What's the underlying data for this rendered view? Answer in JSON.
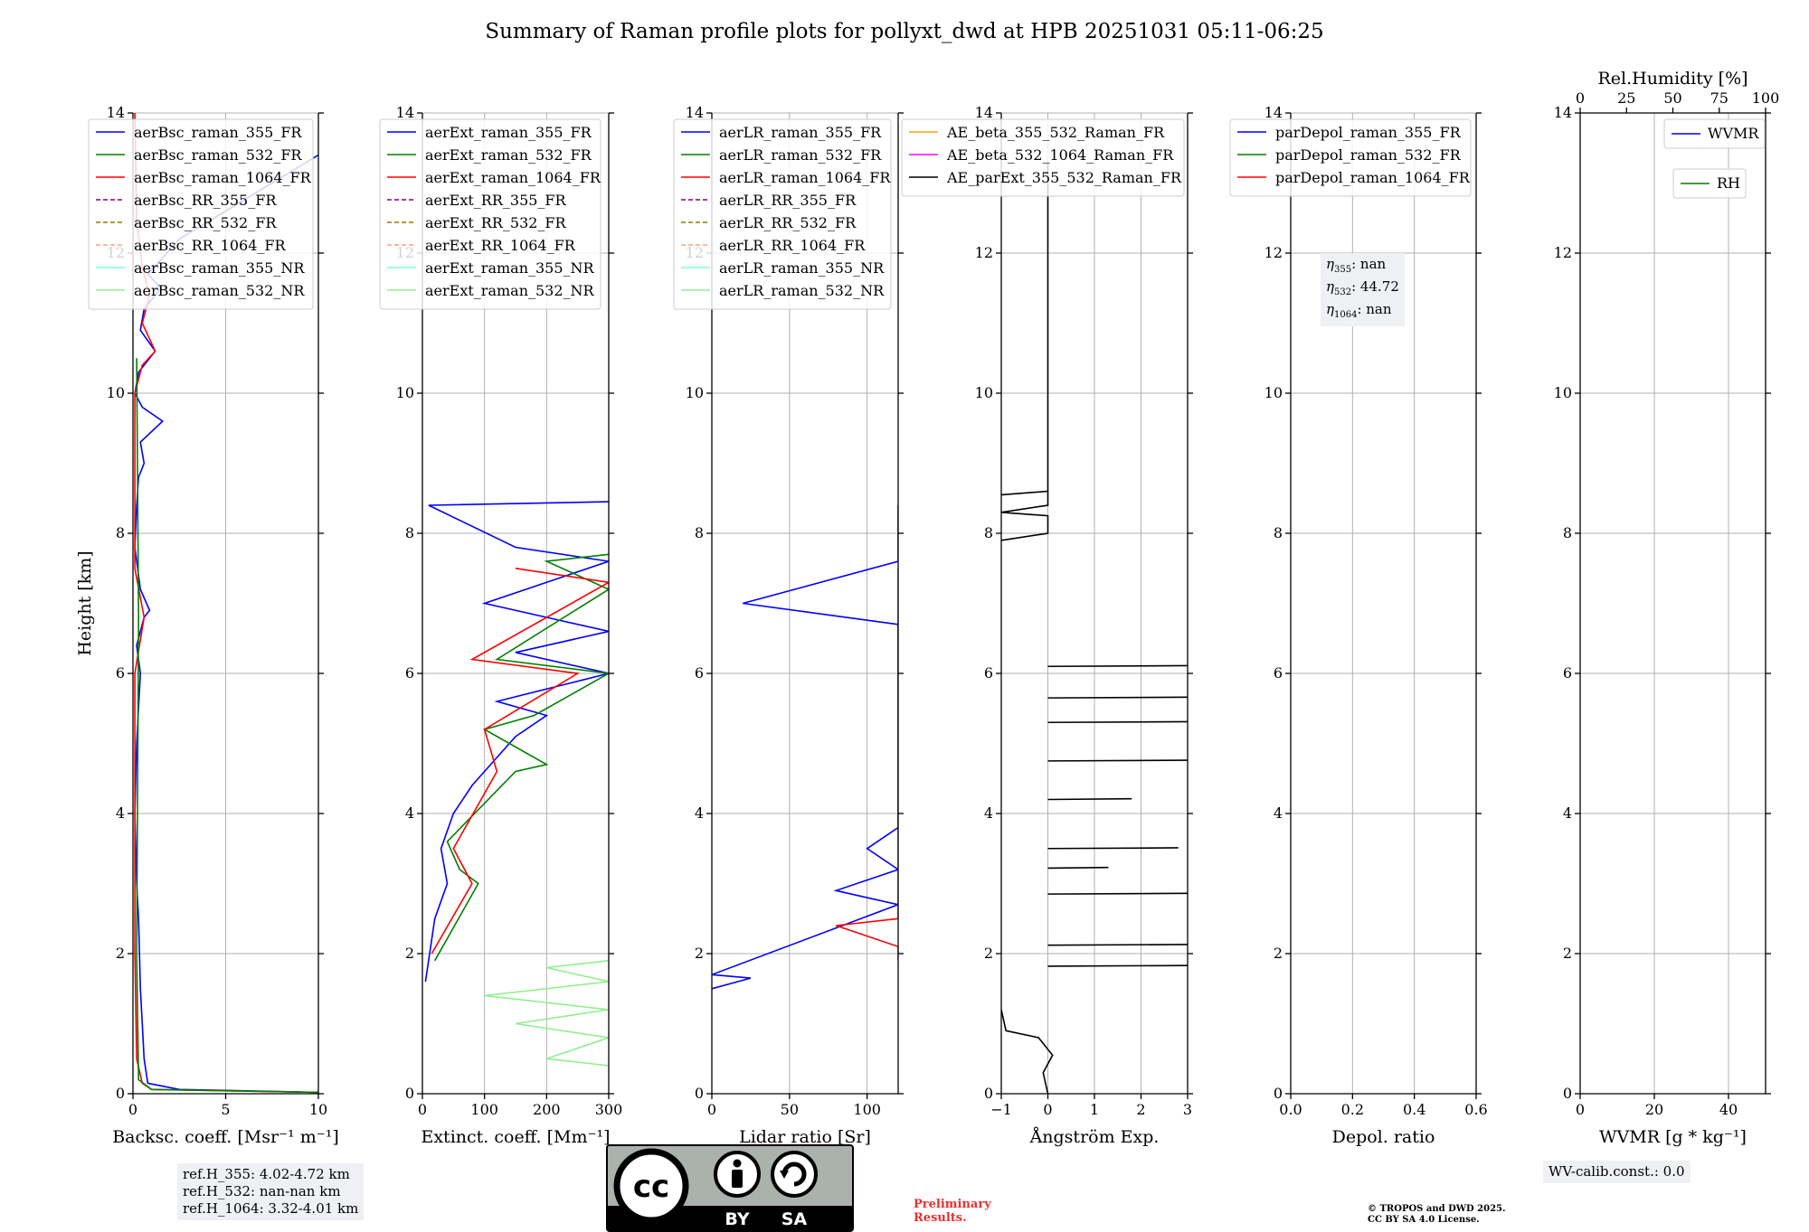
{
  "title": "Summary of Raman profile plots for pollyxt_dwd at HPB 20251031 05:11-06:25",
  "chart_data": [
    {
      "type": "line",
      "id": "bsc",
      "xlabel": "Backsc. coeff. [Msr⁻¹ m⁻¹]",
      "ylabel": "Height [km]",
      "xlim": [
        0,
        10
      ],
      "ylim": [
        0,
        14
      ],
      "xticks": [
        0,
        5,
        10
      ],
      "yticks": [
        0,
        2,
        4,
        6,
        8,
        10,
        12,
        14
      ],
      "legend": [
        {
          "name": "aerBsc_raman_355_FR",
          "color": "#0000ff",
          "dash": false
        },
        {
          "name": "aerBsc_raman_532_FR",
          "color": "#008000",
          "dash": false
        },
        {
          "name": "aerBsc_raman_1064_FR",
          "color": "#ff0000",
          "dash": false
        },
        {
          "name": "aerBsc_RR_355_FR",
          "color": "#800080",
          "dash": true
        },
        {
          "name": "aerBsc_RR_532_FR",
          "color": "#808000",
          "dash": true
        },
        {
          "name": "aerBsc_RR_1064_FR",
          "color": "#ffa07a",
          "dash": true
        },
        {
          "name": "aerBsc_raman_355_NR",
          "color": "#7fffd4",
          "dash": false
        },
        {
          "name": "aerBsc_raman_532_NR",
          "color": "#90ee90",
          "dash": false
        }
      ],
      "series": [
        {
          "name": "aerBsc_raman_355_FR",
          "color": "#0000ff",
          "points": [
            [
              10,
              0.02
            ],
            [
              2.5,
              0.06
            ],
            [
              0.8,
              0.15
            ],
            [
              0.6,
              0.5
            ],
            [
              0.5,
              1
            ],
            [
              0.4,
              1.5
            ],
            [
              0.3,
              2.5
            ],
            [
              0.2,
              3
            ],
            [
              0.1,
              4
            ],
            [
              0.2,
              5
            ],
            [
              0.4,
              6
            ],
            [
              0.2,
              6.4
            ],
            [
              0.6,
              6.8
            ],
            [
              0.9,
              6.9
            ],
            [
              0.4,
              7.2
            ],
            [
              0.1,
              7.8
            ],
            [
              0.2,
              8.4
            ],
            [
              0.3,
              8.8
            ],
            [
              0.6,
              9
            ],
            [
              0.4,
              9.3
            ],
            [
              1.6,
              9.6
            ],
            [
              0.5,
              9.8
            ],
            [
              0.1,
              10
            ],
            [
              0.3,
              10.3
            ],
            [
              1.2,
              10.6
            ],
            [
              0.4,
              10.9
            ],
            [
              0.6,
              11.2
            ],
            [
              1.5,
              11.5
            ],
            [
              0.8,
              11.7
            ],
            [
              2.5,
              12.2
            ],
            [
              10,
              13.4
            ]
          ]
        },
        {
          "name": "aerBsc_raman_1064_FR",
          "color": "#ff0000",
          "points": [
            [
              10,
              0.02
            ],
            [
              1,
              0.06
            ],
            [
              0.5,
              0.15
            ],
            [
              0.2,
              0.5
            ],
            [
              0.1,
              2
            ],
            [
              0.1,
              6
            ],
            [
              0.6,
              6.8
            ],
            [
              0.1,
              7.5
            ],
            [
              0.1,
              10
            ],
            [
              0.5,
              10.4
            ],
            [
              1.2,
              10.6
            ],
            [
              0.5,
              11
            ],
            [
              0.9,
              11.4
            ],
            [
              0.5,
              11.8
            ],
            [
              0.2,
              12.5
            ],
            [
              0.1,
              14
            ]
          ]
        },
        {
          "name": "aerBsc_raman_532_FR",
          "color": "#008000",
          "points": [
            [
              10,
              0.02
            ],
            [
              1,
              0.06
            ],
            [
              0.3,
              0.2
            ],
            [
              0.2,
              2
            ],
            [
              0.3,
              6.8
            ],
            [
              0.2,
              10.5
            ]
          ]
        }
      ]
    },
    {
      "type": "line",
      "id": "ext",
      "xlabel": "Extinct. coeff. [Mm⁻¹]",
      "xlim": [
        0,
        300
      ],
      "ylim": [
        0,
        14
      ],
      "xticks": [
        0,
        100,
        200,
        300
      ],
      "yticks": [
        0,
        2,
        4,
        6,
        8,
        10,
        12,
        14
      ],
      "legend": [
        {
          "name": "aerExt_raman_355_FR",
          "color": "#0000ff",
          "dash": false
        },
        {
          "name": "aerExt_raman_532_FR",
          "color": "#008000",
          "dash": false
        },
        {
          "name": "aerExt_raman_1064_FR",
          "color": "#ff0000",
          "dash": false
        },
        {
          "name": "aerExt_RR_355_FR",
          "color": "#800080",
          "dash": true
        },
        {
          "name": "aerExt_RR_532_FR",
          "color": "#808000",
          "dash": true
        },
        {
          "name": "aerExt_RR_1064_FR",
          "color": "#ffa07a",
          "dash": true
        },
        {
          "name": "aerExt_raman_355_NR",
          "color": "#7fffd4",
          "dash": false
        },
        {
          "name": "aerExt_raman_532_NR",
          "color": "#90ee90",
          "dash": false
        }
      ],
      "series": [
        {
          "name": "aerExt_raman_355_FR",
          "color": "#0000ff",
          "points": [
            [
              5,
              1.6
            ],
            [
              15,
              2.2
            ],
            [
              20,
              2.5
            ],
            [
              40,
              3
            ],
            [
              30,
              3.5
            ],
            [
              50,
              4
            ],
            [
              80,
              4.4
            ],
            [
              120,
              4.8
            ],
            [
              150,
              5.1
            ],
            [
              200,
              5.4
            ],
            [
              120,
              5.6
            ],
            [
              300,
              6
            ],
            [
              150,
              6.3
            ],
            [
              300,
              6.6
            ],
            [
              100,
              7
            ],
            [
              300,
              7.6
            ],
            [
              150,
              7.8
            ],
            [
              10,
              8.4
            ],
            [
              300,
              8.45
            ]
          ]
        },
        {
          "name": "aerExt_raman_532_FR",
          "color": "#008000",
          "points": [
            [
              20,
              1.9
            ],
            [
              90,
              3
            ],
            [
              60,
              3.2
            ],
            [
              40,
              3.6
            ],
            [
              150,
              4.6
            ],
            [
              200,
              4.7
            ],
            [
              100,
              5.2
            ],
            [
              180,
              5.4
            ],
            [
              300,
              6
            ],
            [
              120,
              6.2
            ],
            [
              300,
              7.2
            ],
            [
              200,
              7.6
            ],
            [
              300,
              7.7
            ]
          ]
        },
        {
          "name": "aerExt_raman_1064_FR",
          "color": "#ff0000",
          "points": [
            [
              15,
              2
            ],
            [
              80,
              3
            ],
            [
              50,
              3.5
            ],
            [
              120,
              4.6
            ],
            [
              100,
              5.2
            ],
            [
              250,
              6
            ],
            [
              80,
              6.2
            ],
            [
              300,
              7.3
            ],
            [
              150,
              7.5
            ]
          ]
        },
        {
          "name": "aerExt_raman_532_NR",
          "color": "#90ee90",
          "points": [
            [
              300,
              0.4
            ],
            [
              200,
              0.5
            ],
            [
              300,
              0.8
            ],
            [
              150,
              1.0
            ],
            [
              300,
              1.2
            ],
            [
              100,
              1.4
            ],
            [
              300,
              1.6
            ],
            [
              200,
              1.8
            ],
            [
              300,
              1.9
            ]
          ]
        }
      ]
    },
    {
      "type": "line",
      "id": "lr",
      "xlabel": "Lidar ratio [Sr]",
      "xlim": [
        0,
        120
      ],
      "ylim": [
        0,
        14
      ],
      "xticks": [
        0,
        50,
        100
      ],
      "yticks": [
        0,
        2,
        4,
        6,
        8,
        10,
        12,
        14
      ],
      "legend": [
        {
          "name": "aerLR_raman_355_FR",
          "color": "#0000ff",
          "dash": false
        },
        {
          "name": "aerLR_raman_532_FR",
          "color": "#008000",
          "dash": false
        },
        {
          "name": "aerLR_raman_1064_FR",
          "color": "#ff0000",
          "dash": false
        },
        {
          "name": "aerLR_RR_355_FR",
          "color": "#800080",
          "dash": true
        },
        {
          "name": "aerLR_RR_532_FR",
          "color": "#808000",
          "dash": true
        },
        {
          "name": "aerLR_RR_1064_FR",
          "color": "#ffa07a",
          "dash": true
        },
        {
          "name": "aerLR_raman_355_NR",
          "color": "#7fffd4",
          "dash": false
        },
        {
          "name": "aerLR_raman_532_NR",
          "color": "#90ee90",
          "dash": false
        }
      ],
      "series": [
        {
          "name": "aerLR_raman_355_FR",
          "color": "#0000ff",
          "points": [
            [
              0,
              1.5
            ],
            [
              25,
              1.65
            ],
            [
              0,
              1.7
            ],
            [
              120,
              2.7
            ],
            [
              80,
              2.9
            ],
            [
              120,
              3.2
            ],
            [
              100,
              3.5
            ],
            [
              120,
              3.8
            ],
            [
              120,
              4.8
            ],
            [
              120,
              5.2
            ],
            [
              120,
              6.0
            ],
            [
              120,
              6.3
            ],
            [
              120,
              6.7
            ],
            [
              20,
              7.0
            ],
            [
              120,
              7.6
            ],
            [
              120,
              7.8
            ],
            [
              120,
              8.4
            ]
          ]
        },
        {
          "name": "aerLR_raman_1064_FR",
          "color": "#ff0000",
          "points": [
            [
              120,
              1.9
            ],
            [
              120,
              2.1
            ],
            [
              80,
              2.4
            ],
            [
              120,
              2.5
            ],
            [
              120,
              3.0
            ],
            [
              120,
              3.6
            ],
            [
              120,
              4.1
            ],
            [
              120,
              4.5
            ],
            [
              120,
              5.0
            ],
            [
              120,
              5.5
            ],
            [
              120,
              5.8
            ],
            [
              120,
              6.4
            ],
            [
              120,
              6.6
            ],
            [
              120,
              7.2
            ],
            [
              120,
              7.5
            ]
          ]
        }
      ]
    },
    {
      "type": "line",
      "id": "ae",
      "xlabel": "Ångström Exp.",
      "xlim": [
        -1,
        3
      ],
      "ylim": [
        0,
        14
      ],
      "xticks": [
        -1,
        0,
        1,
        2,
        3
      ],
      "yticks": [
        0,
        2,
        4,
        6,
        8,
        10,
        12,
        14
      ],
      "legend": [
        {
          "name": "AE_beta_355_532_Raman_FR",
          "color": "#ffa500",
          "dash": false
        },
        {
          "name": "AE_beta_532_1064_Raman_FR",
          "color": "#ff00ff",
          "dash": false
        },
        {
          "name": "AE_parExt_355_532_Raman_FR",
          "color": "#000000",
          "dash": false
        }
      ],
      "series": [
        {
          "name": "AE_parExt_355_532_Raman_FR",
          "color": "#000000",
          "points": [
            [
              0,
              0
            ],
            [
              -0.1,
              0.3
            ],
            [
              0.1,
              0.55
            ],
            [
              -0.2,
              0.8
            ],
            [
              -0.9,
              0.9
            ],
            [
              -1,
              1.2
            ]
          ]
        },
        {
          "name": "AE_parExt_355_532_Raman_FR_upper",
          "color": "#000000",
          "points": [
            [
              -1,
              7.9
            ],
            [
              0,
              8.0
            ],
            [
              0,
              8.25
            ],
            [
              -1,
              8.3
            ],
            [
              0,
              8.4
            ],
            [
              0,
              8.6
            ],
            [
              -1,
              8.55
            ]
          ]
        },
        {
          "name": "AE_parExt_355_532_Raman_FR_top",
          "color": "#000000",
          "points": [
            [
              0,
              8.6
            ],
            [
              0,
              13.3
            ]
          ]
        }
      ],
      "spikes": [
        [
          1.82,
          3
        ],
        [
          2.12,
          3
        ],
        [
          2.85,
          3
        ],
        [
          3.22,
          1.3
        ],
        [
          3.5,
          2.8
        ],
        [
          4.2,
          1.8
        ],
        [
          4.75,
          3
        ],
        [
          5.3,
          3
        ],
        [
          5.65,
          3
        ],
        [
          6.1,
          3
        ]
      ]
    },
    {
      "type": "line",
      "id": "depol",
      "xlabel": "Depol. ratio",
      "xlim": [
        0,
        0.6
      ],
      "ylim": [
        0,
        14
      ],
      "xticks": [
        0.0,
        0.2,
        0.4,
        0.6
      ],
      "xtick_labels": [
        "0.0",
        "0.2",
        "0.4",
        "0.6"
      ],
      "yticks": [
        0,
        2,
        4,
        6,
        8,
        10,
        12,
        14
      ],
      "legend": [
        {
          "name": "parDepol_raman_355_FR",
          "color": "#0000ff",
          "dash": false
        },
        {
          "name": "parDepol_raman_532_FR",
          "color": "#008000",
          "dash": false
        },
        {
          "name": "parDepol_raman_1064_FR",
          "color": "#ff0000",
          "dash": false
        }
      ],
      "series": []
    },
    {
      "type": "line",
      "id": "wv",
      "xlabel": "WVMR [g * kg⁻¹]",
      "xlim": [
        0,
        50
      ],
      "ylim": [
        0,
        14
      ],
      "xticks": [
        0,
        20,
        40
      ],
      "yticks": [
        0,
        2,
        4,
        6,
        8,
        10,
        12,
        14
      ],
      "top_axis_label": "Rel.Humidity [%]",
      "top_xlim": [
        0,
        100
      ],
      "top_xticks": [
        0,
        25,
        50,
        75,
        100
      ],
      "legend": [
        {
          "name": "WVMR",
          "color": "#0000ff",
          "dash": false
        },
        {
          "name": "RH",
          "color": "#008000",
          "dash": false
        }
      ],
      "series": []
    }
  ],
  "eta_box": {
    "eta355": ": nan",
    "eta532": ": 44.72",
    "eta1064": ": nan"
  },
  "ref_box": {
    "line1": "ref.H_355: 4.02-4.72 km",
    "line2": "ref.H_532: nan-nan km",
    "line3": "ref.H_1064: 3.32-4.01 km"
  },
  "wv_calib": "WV-calib.const.: 0.0",
  "preliminary": {
    "line1": "Preliminary",
    "line2": "Results."
  },
  "copyright": {
    "line1": "© TROPOS and DWD 2025.",
    "line2": "CC BY SA 4.0 License."
  },
  "license_badge": {
    "cc": "cc",
    "by": "BY",
    "sa": "SA"
  },
  "colors": {
    "grid": "#b0b0b0",
    "legend_border": "#cccccc",
    "info_bg": "#eef0f3",
    "prelim": "#e8302e"
  }
}
